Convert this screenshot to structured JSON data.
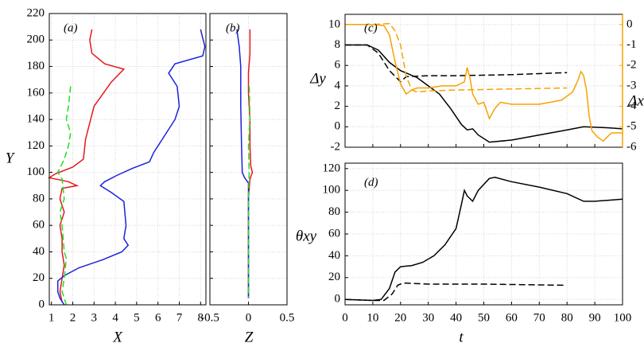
{
  "chart_data": [
    {
      "type": "line",
      "annotation": "(a)",
      "xlabel": "X",
      "ylabel": "Y",
      "grid": true,
      "xlim": [
        0.9,
        8.25
      ],
      "ylim": [
        0,
        220
      ],
      "xticks": [
        1,
        2,
        3,
        4,
        5,
        6,
        7,
        8
      ],
      "yticks": [
        0,
        20,
        40,
        60,
        80,
        100,
        120,
        140,
        160,
        180,
        200,
        220
      ],
      "series": [
        {
          "color": "#e8161b",
          "dash": false,
          "x": [
            2.9,
            2.8,
            2.9,
            3.5,
            4.4,
            3.8,
            3.0,
            2.6,
            2.5,
            2.0,
            1.2,
            0.9,
            1.8,
            2.2,
            1.5,
            1.4,
            1.6,
            1.4,
            1.5,
            1.5,
            1.6,
            1.5,
            1.4,
            1.5
          ],
          "y": [
            208,
            200,
            190,
            182,
            178,
            168,
            150,
            125,
            110,
            104,
            99,
            96,
            93,
            90,
            88,
            80,
            70,
            60,
            50,
            40,
            30,
            20,
            10,
            2
          ]
        },
        {
          "color": "#1a22d8",
          "dash": false,
          "x": [
            8.0,
            8.2,
            8.1,
            6.8,
            6.5,
            6.9,
            7.0,
            6.8,
            6.2,
            5.8,
            5.6,
            4.8,
            4.1,
            3.5,
            3.3,
            3.8,
            4.4,
            4.5,
            4.4,
            4.6,
            4.3,
            3.4,
            2.3,
            1.6,
            1.3,
            1.3,
            1.4,
            1.6
          ],
          "y": [
            208,
            195,
            188,
            182,
            175,
            165,
            150,
            140,
            125,
            115,
            108,
            103,
            98,
            93,
            90,
            85,
            78,
            60,
            50,
            45,
            40,
            34,
            28,
            22,
            18,
            10,
            5,
            0
          ]
        },
        {
          "color": "#22dd22",
          "dash": true,
          "x": [
            1.9,
            1.8,
            1.7,
            1.9,
            1.8,
            1.6,
            1.3,
            1.5,
            1.6,
            1.4,
            1.5,
            1.6,
            1.7,
            1.6,
            1.5,
            1.6,
            1.7
          ],
          "y": [
            165,
            150,
            140,
            130,
            120,
            110,
            100,
            95,
            80,
            70,
            60,
            40,
            35,
            20,
            10,
            5,
            0
          ]
        }
      ]
    },
    {
      "type": "line",
      "annotation": "(b)",
      "xlabel": "Z",
      "grid": true,
      "xlim": [
        -0.5,
        0.5
      ],
      "ylim": [
        0,
        220
      ],
      "xticks": [
        -0.5,
        0,
        0.5
      ],
      "yticks": [
        0,
        20,
        40,
        60,
        80,
        100,
        120,
        140,
        160,
        180,
        200,
        220
      ],
      "series": [
        {
          "color": "#e8161b",
          "dash": false,
          "x": [
            0.02,
            0.02,
            0.0,
            0.0,
            0.02,
            0.02,
            0.03,
            0.05,
            0.02,
            0.0,
            0.0,
            0.0
          ],
          "y": [
            208,
            190,
            175,
            160,
            140,
            120,
            105,
            100,
            95,
            80,
            40,
            5
          ]
        },
        {
          "color": "#1a22d8",
          "dash": false,
          "x": [
            -0.15,
            -0.12,
            -0.1,
            -0.1,
            -0.09,
            -0.08,
            -0.05,
            0.0,
            0.0,
            0.0,
            0.0
          ],
          "y": [
            208,
            195,
            180,
            150,
            120,
            100,
            96,
            92,
            80,
            40,
            5
          ]
        },
        {
          "color": "#22dd22",
          "dash": true,
          "x": [
            0.01,
            0.02,
            0.0,
            0.01,
            0.0,
            0.0
          ],
          "y": [
            165,
            140,
            120,
            100,
            80,
            5
          ]
        }
      ]
    },
    {
      "type": "line",
      "annotation": "(c)",
      "ylabel": "Δy",
      "y2label": "Δx",
      "grid": true,
      "xlim": [
        0,
        100
      ],
      "ylim": [
        -2,
        11
      ],
      "y2lim": [
        -6,
        0.5
      ],
      "xticks": [
        0,
        10,
        20,
        30,
        40,
        50,
        60,
        70,
        80,
        90,
        100
      ],
      "yticks": [
        -2,
        0,
        2,
        4,
        6,
        8,
        10
      ],
      "y2ticks": [
        -6,
        -5,
        -4,
        -3,
        -2,
        -1,
        0
      ],
      "series": [
        {
          "color": "#000000",
          "dash": false,
          "x": [
            0,
            8,
            12,
            16,
            20,
            26,
            30,
            34,
            38,
            42,
            44,
            46,
            48,
            52,
            60,
            70,
            80,
            86,
            95,
            100
          ],
          "y": [
            8,
            8,
            7.5,
            6.3,
            5.5,
            4.8,
            4,
            3.2,
            1.8,
            0.2,
            -0.3,
            -0.2,
            -0.8,
            -1.5,
            -1.3,
            -0.8,
            -0.3,
            0,
            -0.1,
            -0.2
          ]
        },
        {
          "color": "#000000",
          "dash": true,
          "x": [
            0,
            8,
            12,
            16,
            20,
            22,
            30,
            40,
            60,
            80
          ],
          "y": [
            8,
            8,
            7.2,
            5.5,
            4.4,
            4.9,
            5.0,
            5.0,
            5.1,
            5.3
          ]
        },
        {
          "color": "#f5a300",
          "dash": false,
          "axis": "y2",
          "x": [
            0,
            10,
            14,
            16,
            18,
            20,
            22,
            24,
            26,
            30,
            35,
            40,
            43,
            44,
            45,
            46,
            48,
            50,
            52,
            54,
            56,
            60,
            70,
            78,
            82,
            84,
            85,
            86,
            87,
            88,
            89,
            91,
            93,
            96,
            100
          ],
          "y": [
            0,
            0,
            -0.05,
            -0.5,
            -1.8,
            -2.9,
            -3.4,
            -3.2,
            -3.1,
            -3.1,
            -3.0,
            -3.0,
            -2.8,
            -2.1,
            -2.6,
            -3.4,
            -3.9,
            -3.8,
            -4.6,
            -4.1,
            -3.8,
            -3.9,
            -3.9,
            -3.7,
            -3.3,
            -2.7,
            -2.3,
            -2.5,
            -3.2,
            -4.5,
            -5.2,
            -5.5,
            -5.7,
            -5.3,
            -5.3
          ]
        },
        {
          "color": "#f5a300",
          "dash": true,
          "axis": "y2",
          "x": [
            0,
            10,
            16,
            18,
            20,
            22,
            24,
            26,
            30,
            40,
            60,
            80
          ],
          "y": [
            0,
            0,
            0.05,
            -0.3,
            -1,
            -2.5,
            -3.2,
            -3.3,
            -3.25,
            -3.2,
            -3.15,
            -3.1
          ]
        }
      ]
    },
    {
      "type": "line",
      "annotation": "(d)",
      "xlabel": "t",
      "ylabel": "θxy",
      "grid": true,
      "xlim": [
        0,
        100
      ],
      "ylim": [
        -5,
        125
      ],
      "xticks": [
        0,
        10,
        20,
        30,
        40,
        50,
        60,
        70,
        80,
        90,
        100
      ],
      "yticks": [
        0,
        20,
        40,
        60,
        80,
        100,
        120
      ],
      "series": [
        {
          "color": "#000000",
          "dash": false,
          "x": [
            0,
            10,
            13,
            16,
            18,
            20,
            24,
            28,
            32,
            36,
            40,
            42,
            43,
            44,
            46,
            48,
            52,
            54,
            60,
            70,
            80,
            86,
            90,
            100
          ],
          "y": [
            0,
            -1,
            0,
            10,
            25,
            30,
            31,
            34,
            40,
            50,
            65,
            88,
            100,
            95,
            90,
            100,
            111,
            112,
            108,
            103,
            97,
            90,
            90,
            92
          ]
        },
        {
          "color": "#000000",
          "dash": true,
          "x": [
            0,
            10,
            14,
            17,
            19,
            21,
            30,
            50,
            79
          ],
          "y": [
            0,
            -1,
            -1,
            5,
            13,
            15,
            14,
            14,
            13
          ]
        }
      ]
    }
  ]
}
